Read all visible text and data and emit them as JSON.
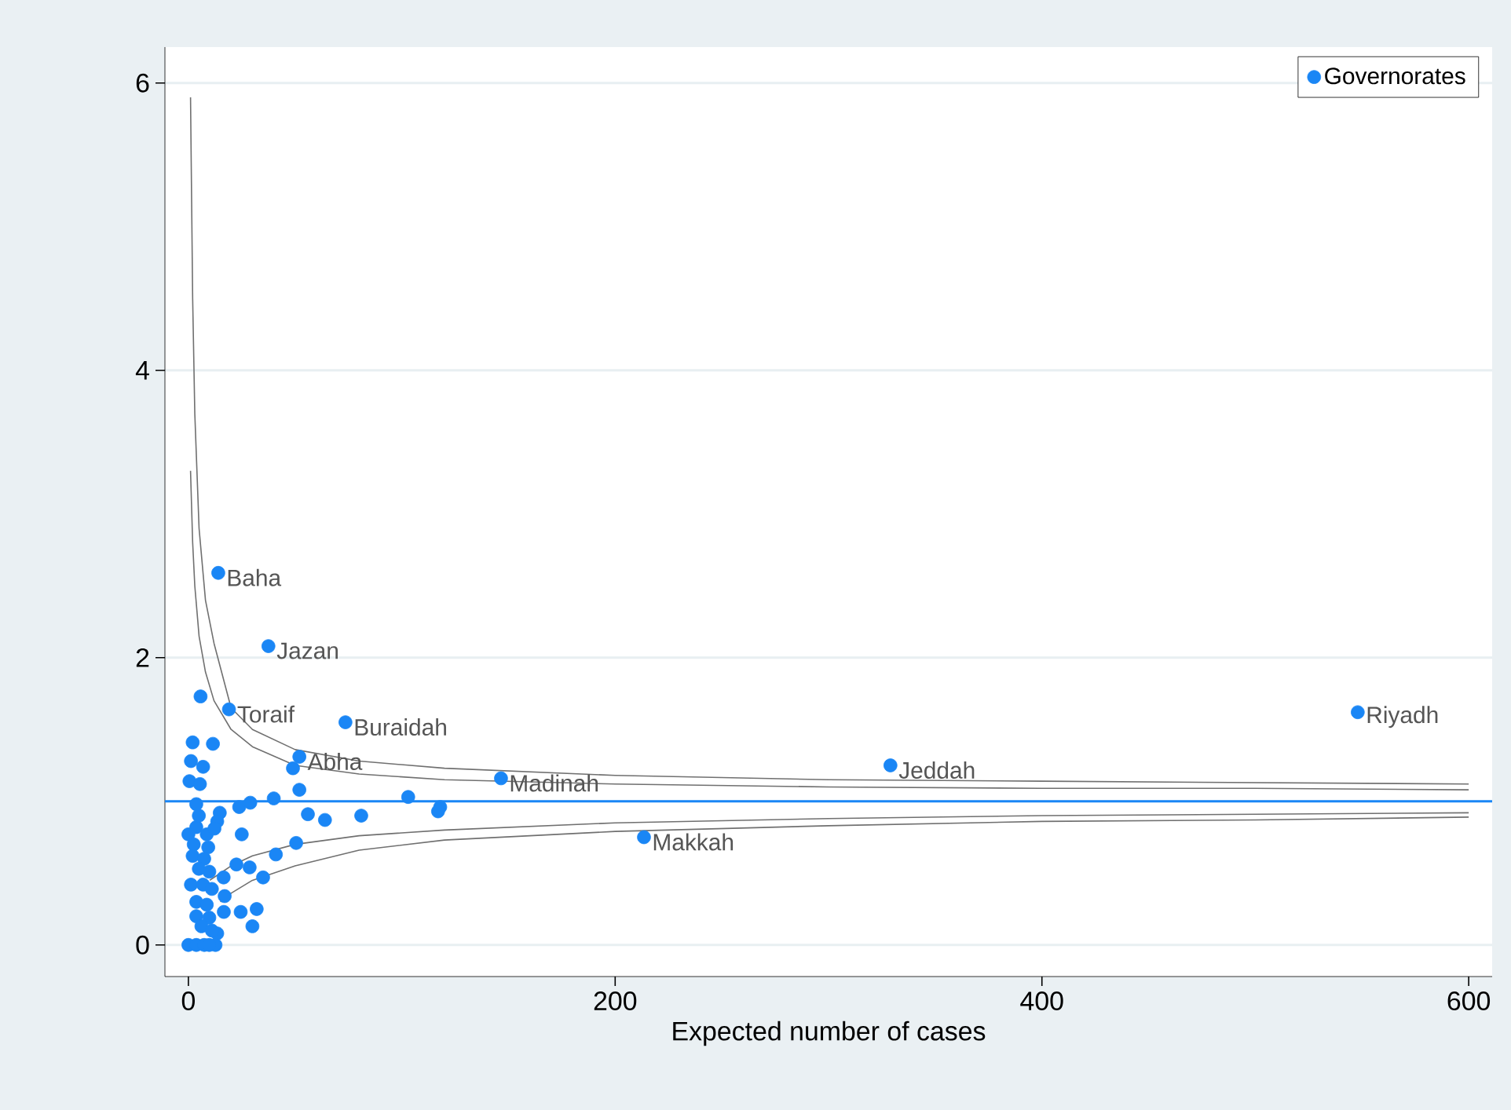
{
  "chart_data": {
    "type": "scatter",
    "xlabel": "Expected number of cases",
    "xlim": [
      -11,
      611
    ],
    "ylim": [
      -0.22,
      6.25
    ],
    "xticks": [
      0,
      200,
      400,
      600
    ],
    "yticks": [
      0,
      2,
      4,
      6
    ],
    "grid": "y",
    "legend": "top right",
    "series": [
      {
        "name": "Governorates",
        "marker": "circle",
        "color": "#1a86f5",
        "x": [
          14,
          37.5,
          19,
          73.6,
          52,
          146.5,
          329,
          548,
          213.5,
          5.7,
          2,
          11.5,
          1.2,
          6.9,
          0.5,
          5.4,
          49,
          52,
          3.7,
          14.7,
          23.8,
          29,
          40,
          56,
          64,
          81,
          103,
          118,
          117,
          25,
          50.5,
          41,
          22.5,
          28.7,
          16.5,
          35,
          17,
          16.6,
          24.5,
          32,
          30,
          13.5,
          12.7,
          3.7,
          0,
          8.6,
          2.5,
          9.3,
          2,
          7.4,
          4.9,
          9.8,
          1.2,
          6.9,
          11,
          3.7,
          8.6,
          3.7,
          9.8,
          6.1,
          11,
          0,
          3.7,
          7.4,
          9.8,
          13.5,
          12.2,
          4.9
        ],
        "values": [
          2.59,
          2.08,
          1.64,
          1.55,
          1.31,
          1.16,
          1.25,
          1.62,
          0.75,
          1.73,
          1.41,
          1.4,
          1.28,
          1.24,
          1.14,
          1.12,
          1.23,
          1.08,
          0.98,
          0.92,
          0.96,
          0.99,
          1.02,
          0.91,
          0.87,
          0.9,
          1.03,
          0.96,
          0.93,
          0.77,
          0.71,
          0.63,
          0.56,
          0.54,
          0.47,
          0.47,
          0.34,
          0.23,
          0.23,
          0.25,
          0.13,
          0.08,
          0.0,
          0.82,
          0.77,
          0.77,
          0.7,
          0.68,
          0.62,
          0.6,
          0.53,
          0.51,
          0.42,
          0.42,
          0.39,
          0.3,
          0.28,
          0.2,
          0.19,
          0.13,
          0.1,
          0.0,
          0.0,
          0.0,
          0.0,
          0.86,
          0.81,
          0.9
        ]
      },
      {
        "type": "line",
        "marker": "none",
        "color": "#707070",
        "line_style": "solid",
        "x": [
          1,
          2,
          3,
          5,
          8,
          12,
          20,
          30,
          50,
          80,
          120,
          200,
          300,
          400,
          500,
          600
        ],
        "values": [
          5.9,
          4.5,
          3.7,
          2.9,
          2.4,
          2.1,
          1.65,
          1.5,
          1.36,
          1.28,
          1.23,
          1.18,
          1.15,
          1.14,
          1.13,
          1.12
        ]
      },
      {
        "type": "line",
        "marker": "none",
        "color": "#707070",
        "line_style": "solid",
        "x": [
          1,
          2,
          3,
          5,
          8,
          12,
          20,
          30,
          50,
          80,
          120,
          200,
          300,
          400,
          500,
          600
        ],
        "values": [
          3.3,
          2.8,
          2.5,
          2.15,
          1.9,
          1.7,
          1.5,
          1.38,
          1.25,
          1.19,
          1.15,
          1.12,
          1.1,
          1.09,
          1.09,
          1.08
        ]
      },
      {
        "type": "line",
        "marker": "none",
        "color": "#707070",
        "line_style": "solid",
        "x": [
          10,
          15,
          20,
          30,
          50,
          80,
          120,
          200,
          300,
          400,
          500,
          600
        ],
        "values": [
          0.45,
          0.5,
          0.55,
          0.62,
          0.7,
          0.76,
          0.8,
          0.85,
          0.88,
          0.9,
          0.91,
          0.92
        ]
      },
      {
        "type": "line",
        "marker": "none",
        "color": "#707070",
        "line_style": "solid",
        "x": [
          15,
          20,
          30,
          50,
          80,
          120,
          200,
          300,
          400,
          500,
          600
        ],
        "values": [
          0.3,
          0.36,
          0.45,
          0.55,
          0.66,
          0.73,
          0.79,
          0.83,
          0.86,
          0.87,
          0.89
        ]
      }
    ],
    "ref_lines": [
      {
        "axis": "y",
        "value": 1,
        "color": "#1a86f5"
      }
    ],
    "annotations": [
      {
        "text": "Baha",
        "x": 14,
        "y": 2.59
      },
      {
        "text": "Jazan",
        "x": 37.5,
        "y": 2.08
      },
      {
        "text": "Toraif",
        "x": 19,
        "y": 1.64
      },
      {
        "text": "Buraidah",
        "x": 73.6,
        "y": 1.55
      },
      {
        "text": "Abha",
        "x": 52,
        "y": 1.31
      },
      {
        "text": "Madinah",
        "x": 146.5,
        "y": 1.16
      },
      {
        "text": "Jeddah",
        "x": 329,
        "y": 1.25
      },
      {
        "text": "Riyadh",
        "x": 548,
        "y": 1.62
      },
      {
        "text": "Makkah",
        "x": 213.5,
        "y": 0.75
      }
    ]
  }
}
